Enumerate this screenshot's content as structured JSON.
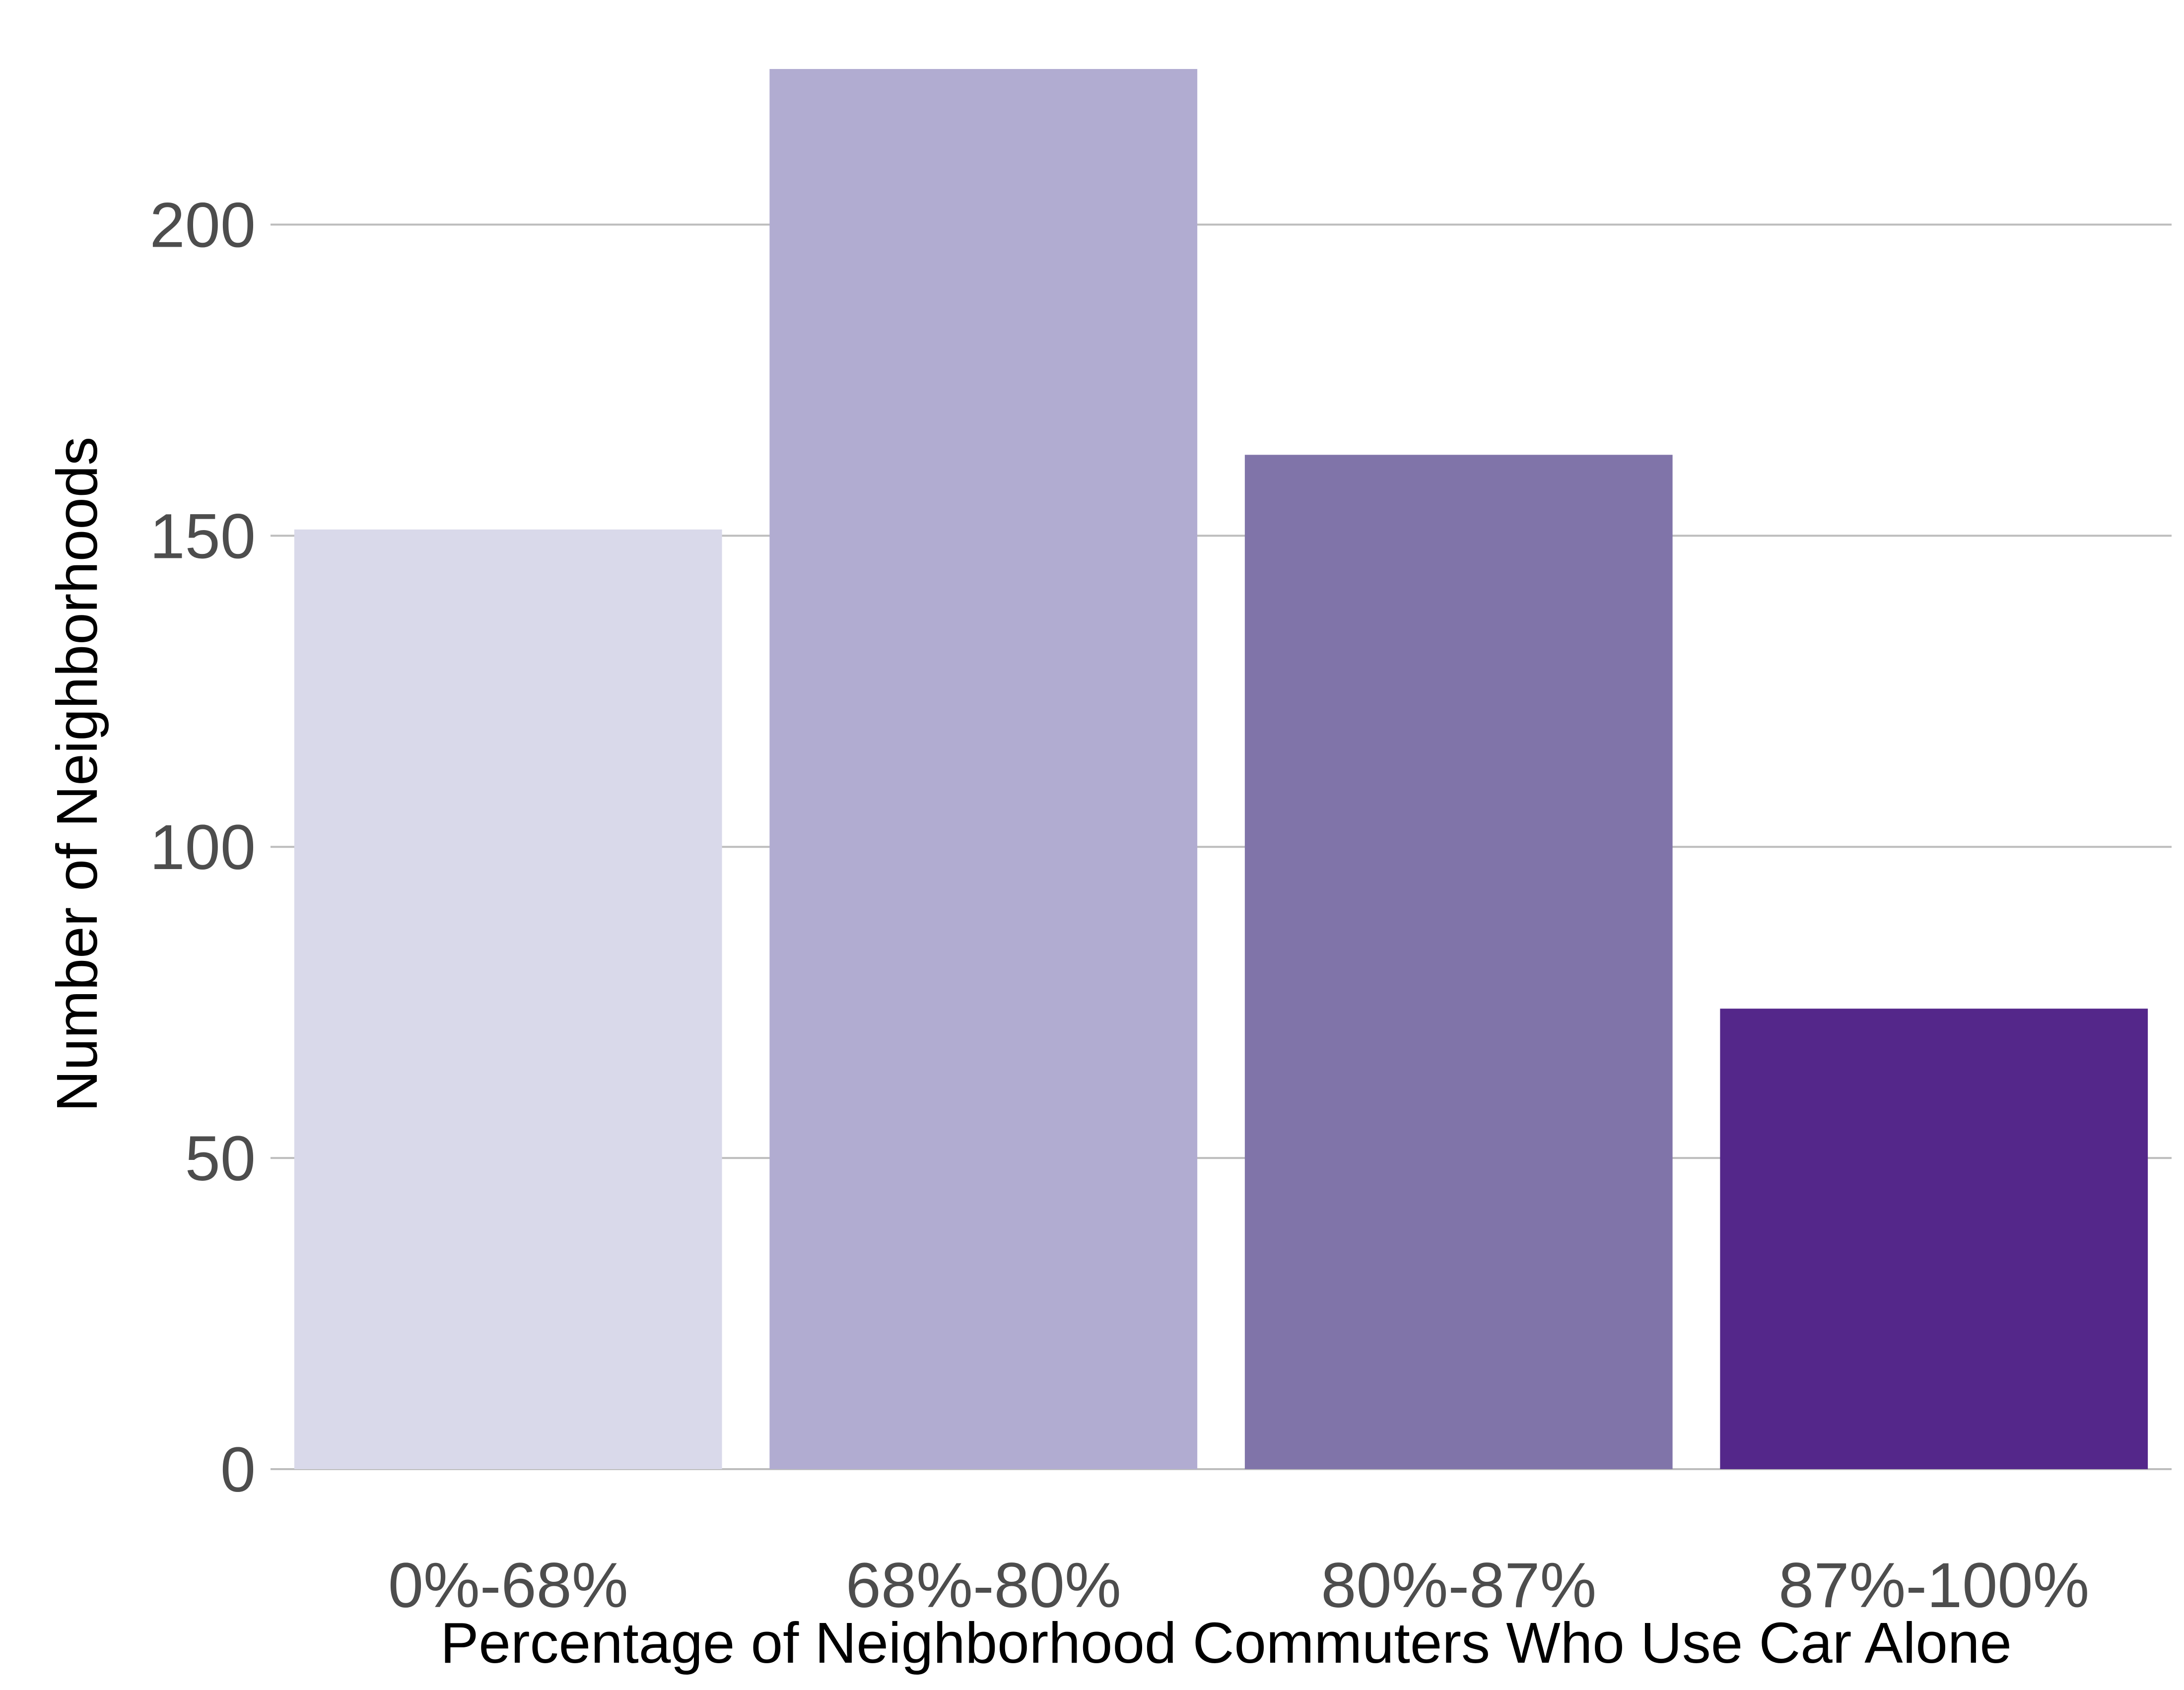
{
  "chart_data": {
    "type": "bar",
    "title": "",
    "xlabel": "Percentage of Neighborhood Commuters Who Use Car Alone",
    "ylabel": "Number of Neighborhoods",
    "categories": [
      "0%-68%",
      "68%-80%",
      "80%-87%",
      "87%-100%"
    ],
    "values": [
      151,
      225,
      163,
      74
    ],
    "colors": [
      "#d9d9ea",
      "#b1acd1",
      "#8074a9",
      "#54278a"
    ],
    "ylim": [
      0,
      225
    ],
    "yticks": [
      0,
      50,
      100,
      150,
      200
    ],
    "grid": true,
    "legend": false
  }
}
